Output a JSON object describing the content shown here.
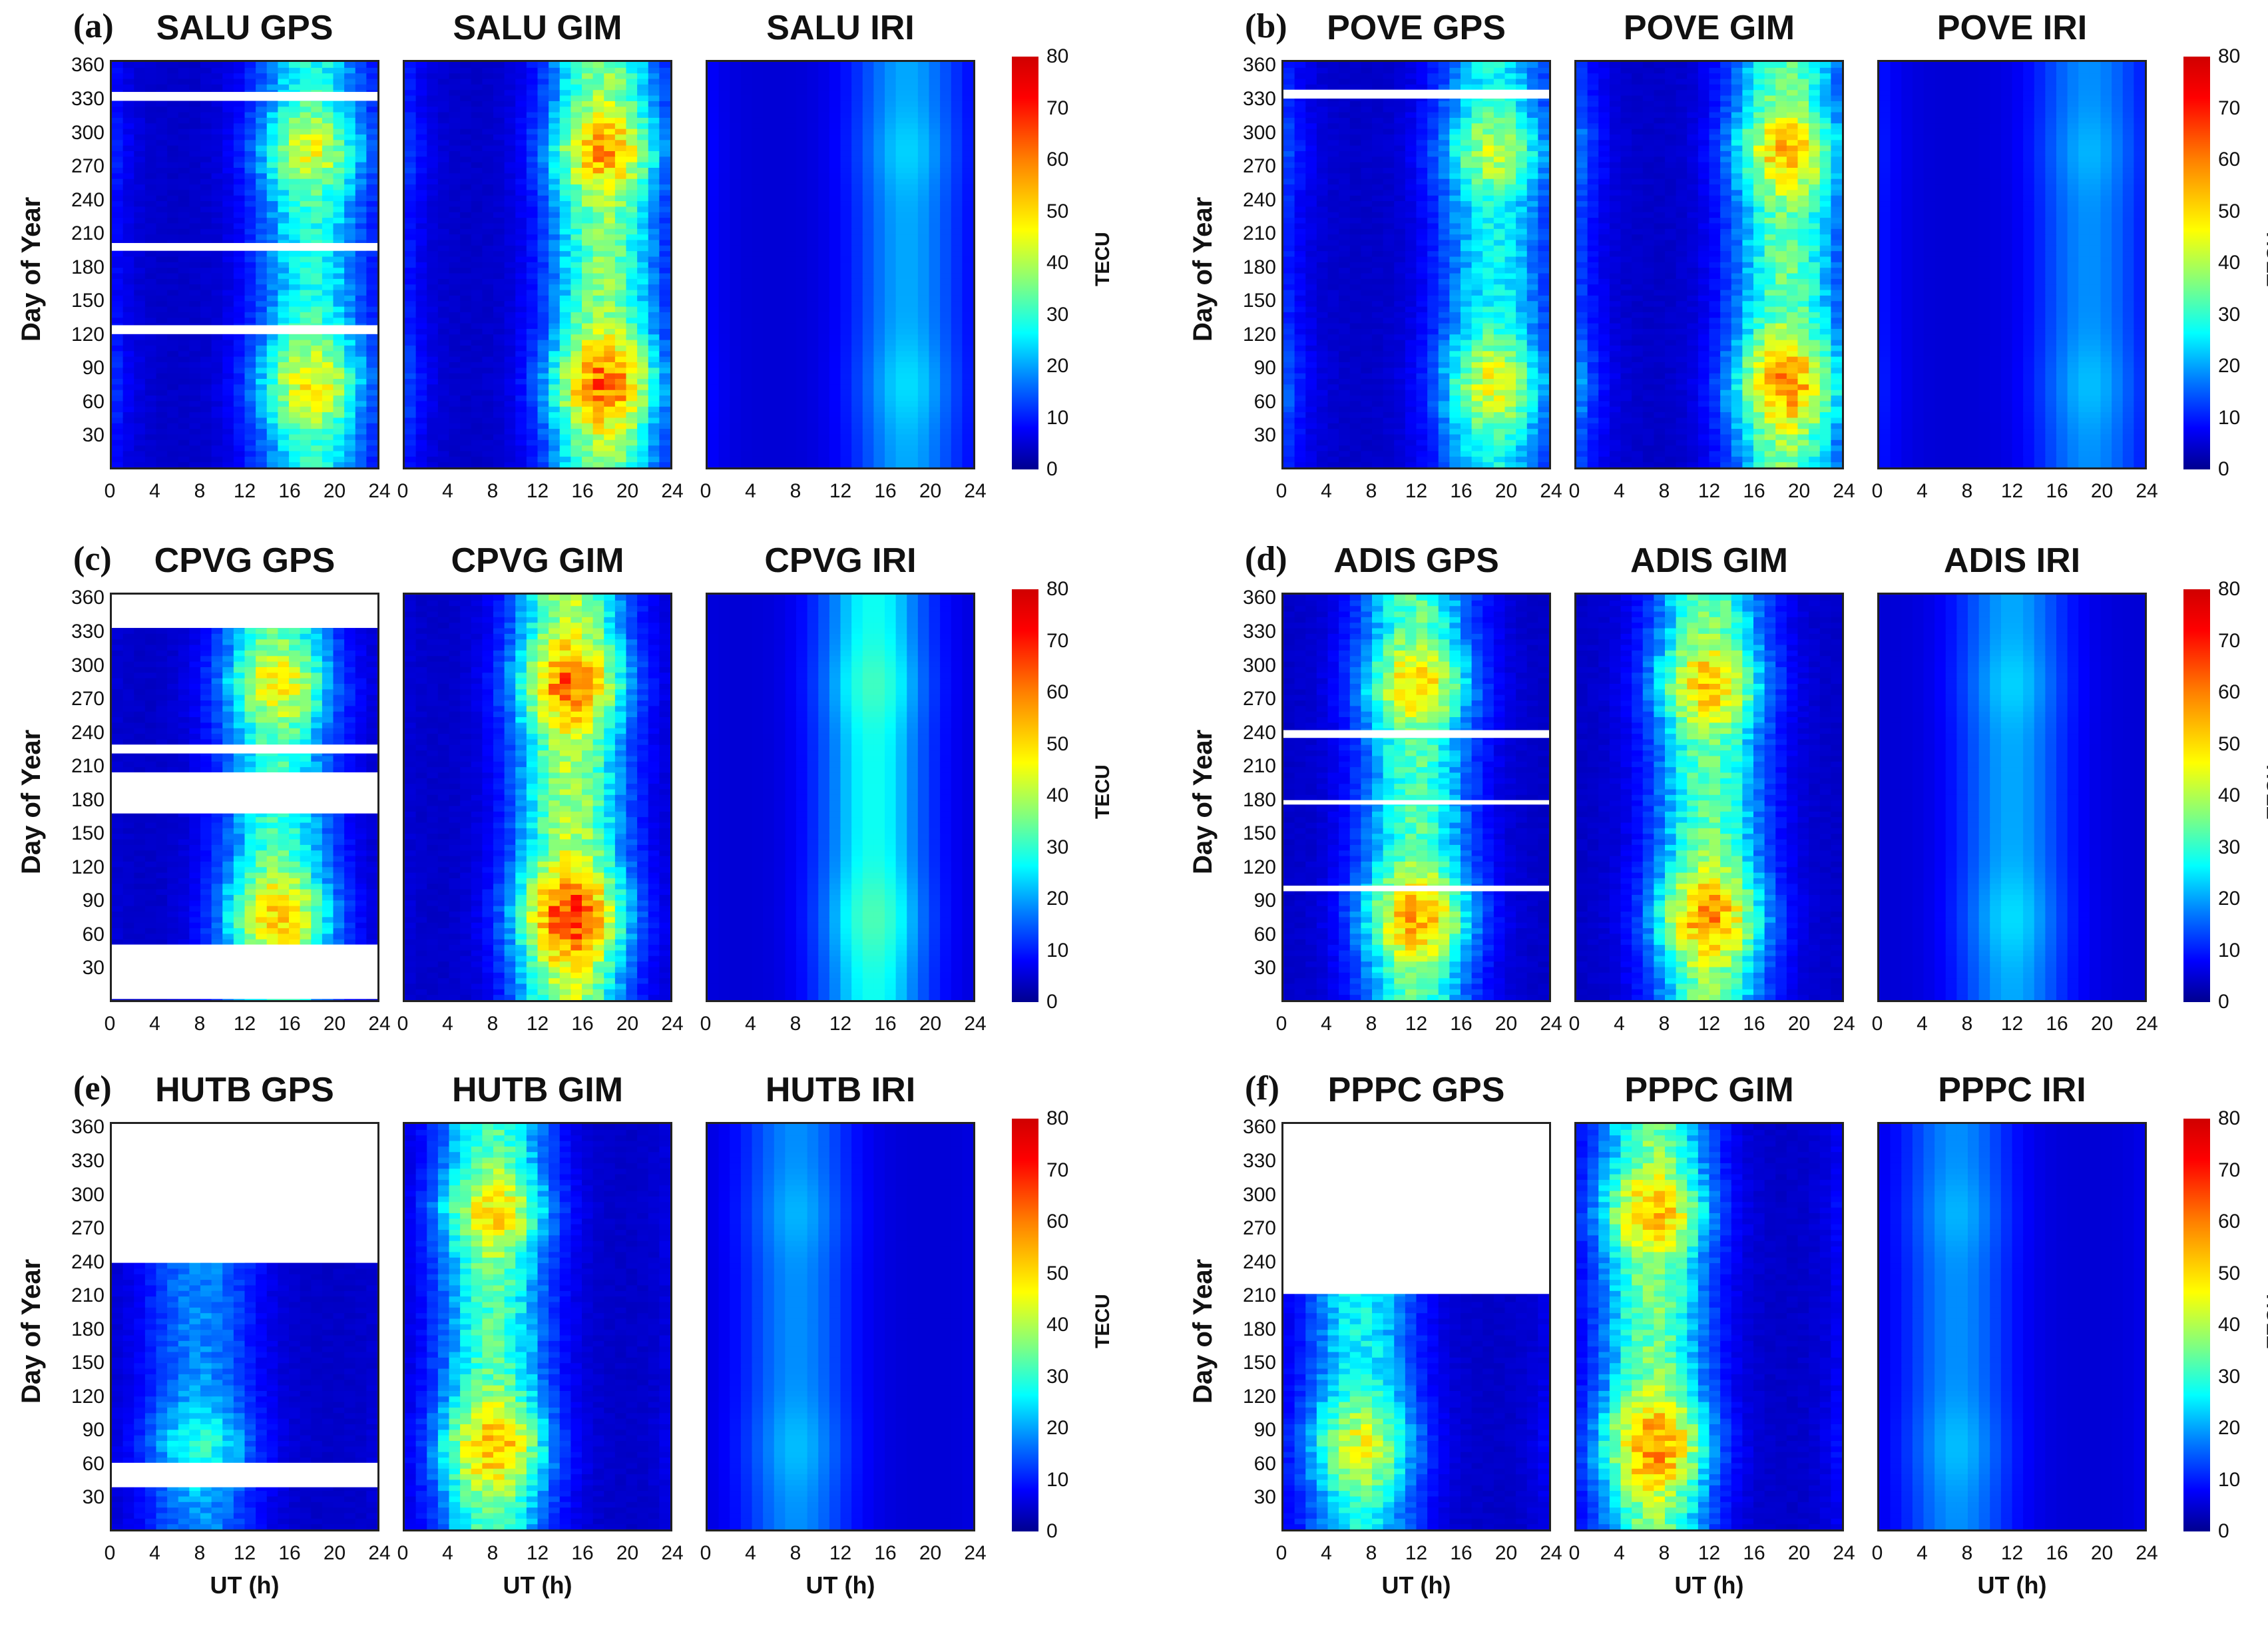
{
  "figure": {
    "y_axis_label": "Day of Year",
    "x_axis_label": "UT (h)",
    "colorbar_label": "TECU"
  },
  "chart_data": {
    "type": "heatmap",
    "description_units": "TEC in TECU; x = UT hour, y = day of year",
    "x_ticks": [
      "0",
      "4",
      "8",
      "12",
      "16",
      "20",
      "24"
    ],
    "y_ticks": [
      "30",
      "60",
      "90",
      "120",
      "150",
      "180",
      "210",
      "240",
      "270",
      "300",
      "330",
      "360"
    ],
    "colorbar_ticks": [
      "0",
      "10",
      "20",
      "30",
      "40",
      "50",
      "60",
      "70",
      "80"
    ],
    "zlim": [
      0,
      80
    ],
    "xlim": [
      0,
      24
    ],
    "ylim": [
      1,
      365
    ],
    "panels": [
      {
        "id": "a",
        "label": "(a)",
        "station": "SALU",
        "titles": [
          "SALU GPS",
          "SALU GIM",
          "SALU IRI"
        ],
        "peak_ut": 18,
        "peak_tec": {
          "GPS": 48,
          "GIM": 62,
          "IRI": 24
        },
        "gps_gaps": [
          [
            330,
            338
          ],
          [
            195,
            202
          ],
          [
            120,
            128
          ]
        ]
      },
      {
        "id": "b",
        "label": "(b)",
        "station": "POVE",
        "titles": [
          "POVE GPS",
          "POVE GIM",
          "POVE IRI"
        ],
        "peak_ut": 19,
        "peak_tec": {
          "GPS": 45,
          "GIM": 58,
          "IRI": 22
        },
        "gps_gaps": [
          [
            332,
            340
          ]
        ]
      },
      {
        "id": "c",
        "label": "(c)",
        "station": "CPVG",
        "titles": [
          "CPVG GPS",
          "CPVG GIM",
          "CPVG IRI"
        ],
        "peak_ut": 15,
        "peak_tec": {
          "GPS": 52,
          "GIM": 68,
          "IRI": 32
        },
        "gps_gaps": [
          [
            335,
            365
          ],
          [
            222,
            230
          ],
          [
            168,
            205
          ],
          [
            1,
            50
          ]
        ]
      },
      {
        "id": "d",
        "label": "(d)",
        "station": "ADIS",
        "titles": [
          "ADIS GPS",
          "ADIS GIM",
          "ADIS IRI"
        ],
        "peak_ut": 12,
        "peak_tec": {
          "GPS": 55,
          "GIM": 58,
          "IRI": 24
        },
        "gps_gaps": [
          [
            236,
            243
          ],
          [
            176,
            180
          ],
          [
            98,
            103
          ]
        ]
      },
      {
        "id": "e",
        "label": "(e)",
        "station": "HUTB",
        "titles": [
          "HUTB GPS",
          "HUTB GIM",
          "HUTB IRI"
        ],
        "peak_ut": 8,
        "peak_tec": {
          "GPS": 30,
          "GIM": 55,
          "IRI": 22
        },
        "gps_gaps": [
          [
            240,
            365
          ],
          [
            38,
            60
          ]
        ]
      },
      {
        "id": "f",
        "label": "(f)",
        "station": "PPPC",
        "titles": [
          "PPPC GPS",
          "PPPC GIM",
          "PPPC IRI"
        ],
        "peak_ut": 7,
        "peak_tec": {
          "GPS": 45,
          "GIM": 60,
          "IRI": 22
        },
        "gps_gaps": [
          [
            212,
            365
          ]
        ]
      }
    ]
  }
}
